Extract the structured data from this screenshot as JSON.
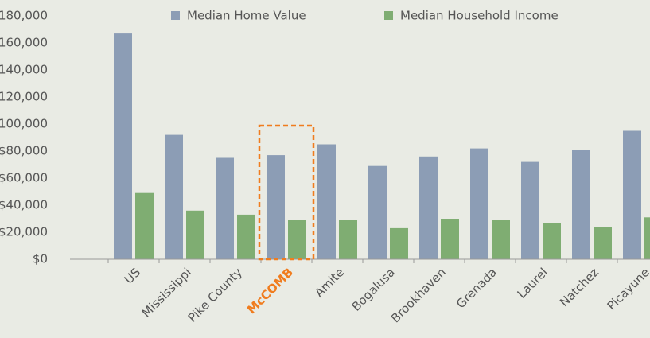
{
  "chart_data": {
    "type": "bar",
    "categories": [
      "US",
      "Mississippi",
      "Pike County",
      "McCOMB",
      "Amite",
      "Bogalusa",
      "Brookhaven",
      "Grenada",
      "Laurel",
      "Natchez",
      "Picayune"
    ],
    "series": [
      {
        "name": "Median Home Value",
        "color": "#8c9db5",
        "values": [
          167000,
          92000,
          75000,
          77000,
          85000,
          69000,
          76000,
          82000,
          72000,
          81000,
          95000
        ]
      },
      {
        "name": "Median Household Income",
        "color": "#7fad72",
        "values": [
          49000,
          36000,
          33000,
          29000,
          29000,
          23000,
          30000,
          29000,
          27000,
          24000,
          31000
        ]
      }
    ],
    "ylim": [
      0,
      180000
    ],
    "yticks": [
      {
        "value": 0,
        "label": "$0"
      },
      {
        "value": 20000,
        "label": "$20,000"
      },
      {
        "value": 40000,
        "label": "$40,000"
      },
      {
        "value": 60000,
        "label": "$60,000"
      },
      {
        "value": 80000,
        "label": "$80,000"
      },
      {
        "value": 100000,
        "label": "$100,000"
      },
      {
        "value": 120000,
        "label": "$120,000"
      },
      {
        "value": 140000,
        "label": "$140,000"
      },
      {
        "value": 160000,
        "label": "$160,000"
      },
      {
        "value": 180000,
        "label": "$180,000"
      }
    ],
    "highlight": "McCOMB",
    "highlight_color": "#f07c1e"
  }
}
